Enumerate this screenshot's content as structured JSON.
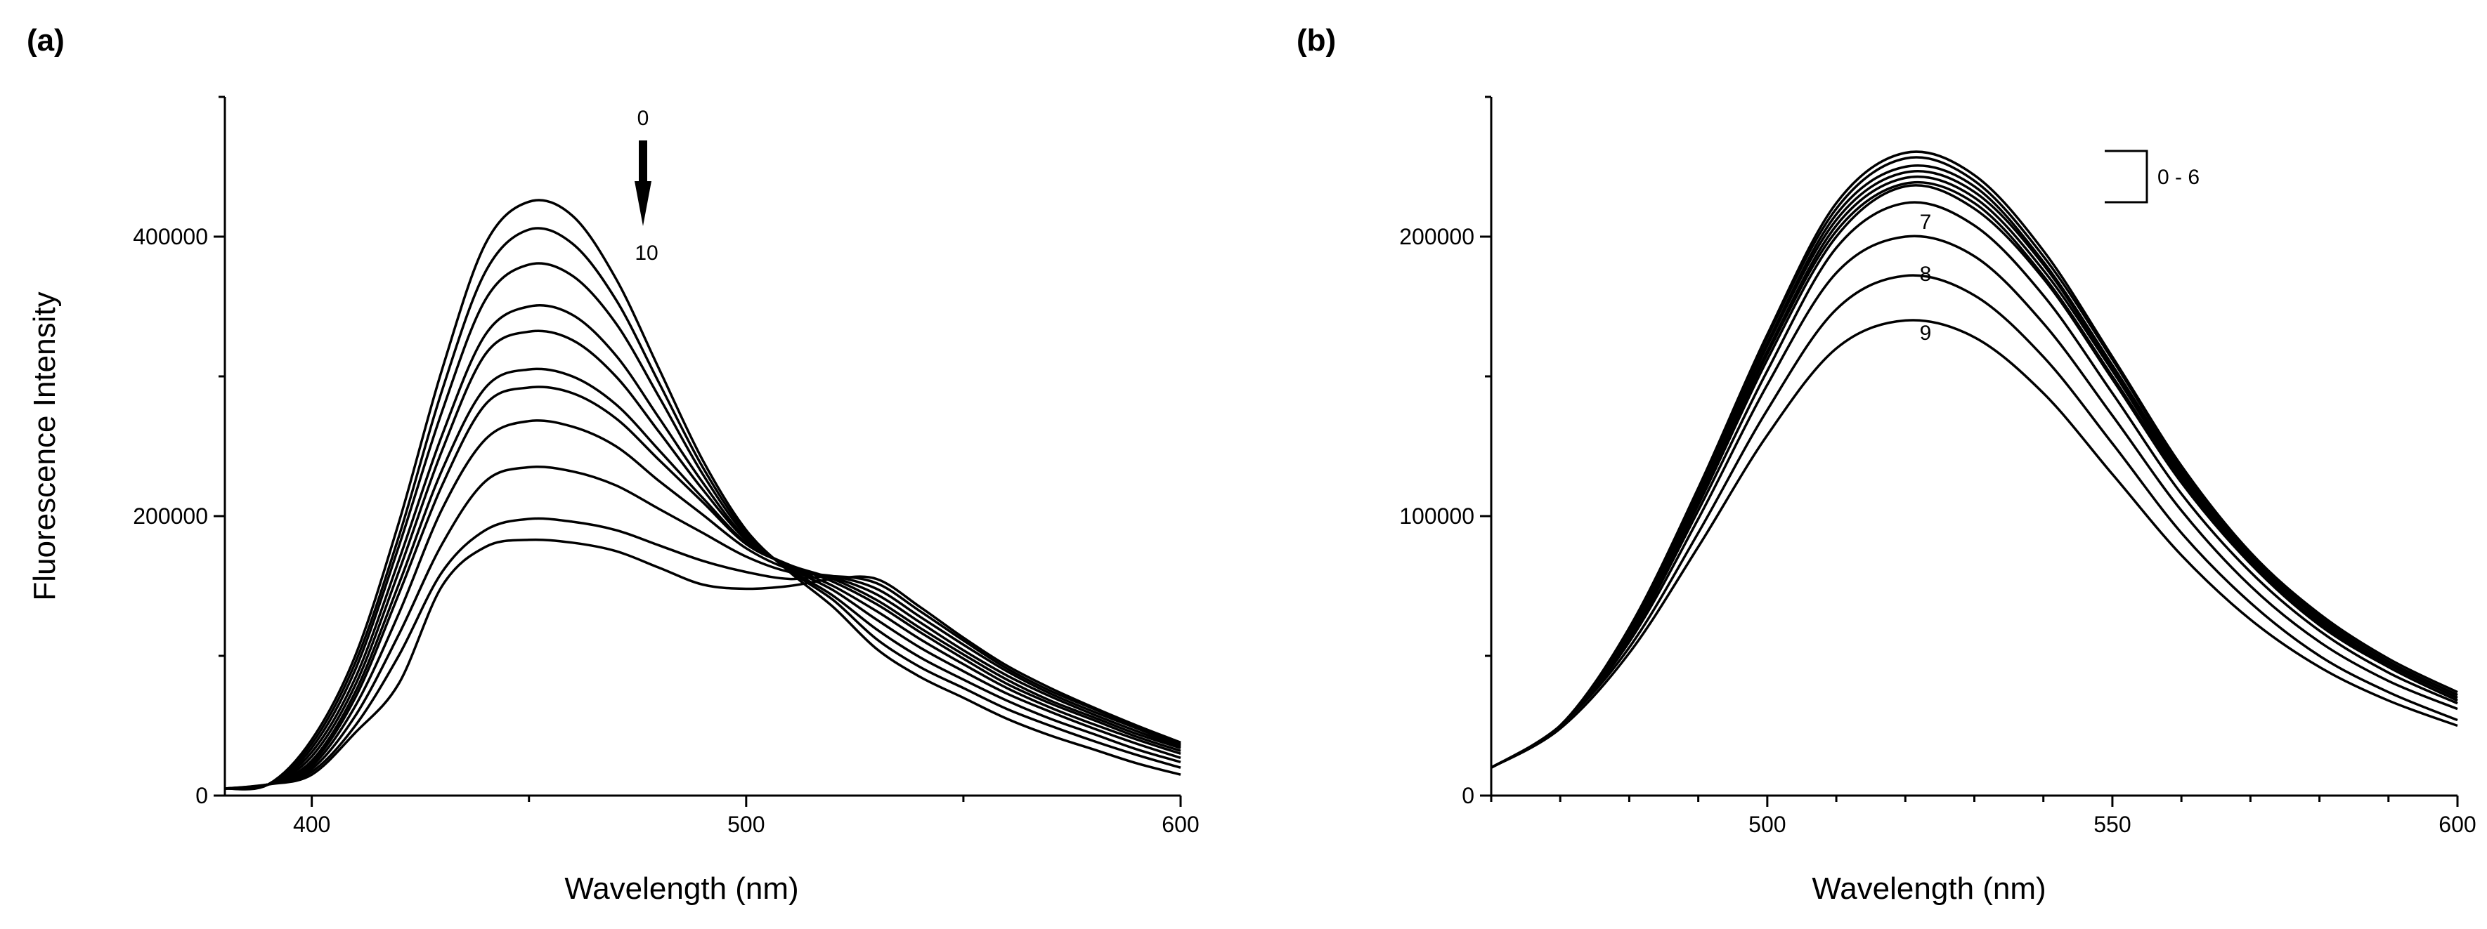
{
  "chart_data": [
    {
      "panel": "(a)",
      "type": "line",
      "xlabel": "Wavelength (nm)",
      "ylabel": "Fluorescence Intensity",
      "xlim": [
        380,
        600
      ],
      "ylim": [
        0,
        500000
      ],
      "x_ticks": [
        400,
        500,
        600
      ],
      "y_ticks": [
        0,
        200000,
        400000
      ],
      "x_tick_labels": [
        "400",
        "500",
        "600"
      ],
      "y_tick_labels": [
        "0",
        "200000",
        "400000"
      ],
      "annotations": {
        "top_label": "0",
        "bottom_label": "10"
      },
      "x": [
        380,
        390,
        400,
        410,
        420,
        430,
        440,
        450,
        460,
        470,
        480,
        490,
        500,
        510,
        520,
        530,
        540,
        550,
        560,
        570,
        580,
        590,
        600
      ],
      "series": [
        {
          "name": "0",
          "values": [
            5000,
            8000,
            40000,
            100000,
            195000,
            305000,
            395000,
            425000,
            415000,
            370000,
            305000,
            240000,
            190000,
            160000,
            135000,
            105000,
            85000,
            70000,
            55000,
            43000,
            33000,
            23000,
            15000
          ]
        },
        {
          "name": "1",
          "values": [
            5000,
            8000,
            37000,
            95000,
            185000,
            290000,
            375000,
            405000,
            395000,
            355000,
            295000,
            235000,
            188000,
            161000,
            140000,
            112000,
            92000,
            77000,
            62000,
            50000,
            39000,
            29000,
            20000
          ]
        },
        {
          "name": "2",
          "values": [
            5000,
            8000,
            34000,
            90000,
            178000,
            275000,
            355000,
            380000,
            372000,
            338000,
            285000,
            230000,
            186000,
            162000,
            143000,
            119000,
            99000,
            83000,
            68000,
            55000,
            44000,
            33000,
            24000
          ]
        },
        {
          "name": "3",
          "values": [
            5000,
            8000,
            31000,
            84000,
            168000,
            258000,
            330000,
            350000,
            344000,
            315000,
            270000,
            224000,
            184000,
            163000,
            147000,
            126000,
            106000,
            89000,
            73000,
            60000,
            48000,
            37000,
            27000
          ]
        },
        {
          "name": "4",
          "values": [
            5000,
            8000,
            28000,
            79000,
            160000,
            247000,
            316000,
            332000,
            326000,
            300000,
            260000,
            219000,
            183000,
            164000,
            150000,
            132000,
            112000,
            94000,
            77000,
            63000,
            51000,
            40000,
            30000
          ]
        },
        {
          "name": "5",
          "values": [
            5000,
            8000,
            25000,
            74000,
            151000,
            233000,
            292000,
            305000,
            300000,
            280000,
            247000,
            213000,
            181000,
            165000,
            153000,
            137000,
            117000,
            98000,
            80000,
            66000,
            54000,
            42000,
            32000
          ]
        },
        {
          "name": "6",
          "values": [
            5000,
            8000,
            23000,
            70000,
            144000,
            222000,
            280000,
            292000,
            288000,
            270000,
            240000,
            210000,
            180000,
            165000,
            155000,
            140000,
            120000,
            101000,
            83000,
            68000,
            56000,
            44000,
            34000
          ]
        },
        {
          "name": "7",
          "values": [
            5000,
            8000,
            21000,
            64000,
            130000,
            205000,
            255000,
            268000,
            264000,
            250000,
            225000,
            201000,
            177000,
            162000,
            156000,
            144000,
            124000,
            104000,
            86000,
            71000,
            58000,
            46000,
            35000
          ]
        },
        {
          "name": "8",
          "values": [
            5000,
            8000,
            19000,
            57000,
            115000,
            180000,
            225000,
            235000,
            232000,
            222000,
            205000,
            188000,
            171000,
            160000,
            157000,
            148000,
            128000,
            108000,
            89000,
            73000,
            60000,
            48000,
            36000
          ]
        },
        {
          "name": "9",
          "values": [
            5000,
            8000,
            17000,
            50000,
            100000,
            160000,
            190000,
            198000,
            196000,
            190000,
            179000,
            168000,
            160000,
            155000,
            157000,
            152000,
            132000,
            111000,
            91000,
            75000,
            62000,
            49000,
            37000
          ]
        },
        {
          "name": "10",
          "values": [
            5000,
            8000,
            15000,
            45000,
            80000,
            150000,
            178000,
            183000,
            181000,
            175000,
            163000,
            151000,
            148000,
            150000,
            155000,
            155000,
            135000,
            113000,
            93000,
            77000,
            63000,
            50000,
            38000
          ]
        }
      ]
    },
    {
      "panel": "(b)",
      "type": "line",
      "xlabel": "Wavelength (nm)",
      "ylabel": "",
      "xlim": [
        460,
        600
      ],
      "ylim": [
        0,
        250000
      ],
      "x_ticks": [
        500,
        550,
        600
      ],
      "y_ticks": [
        0,
        100000,
        200000
      ],
      "x_tick_labels": [
        "500",
        "550",
        "600"
      ],
      "y_tick_labels": [
        "0",
        "100000",
        "200000"
      ],
      "annotations": {
        "bracket_label": "0 - 6",
        "curve_labels": [
          "7",
          "8",
          "9"
        ]
      },
      "x": [
        460,
        470,
        480,
        490,
        500,
        510,
        520,
        530,
        540,
        550,
        560,
        570,
        580,
        590,
        600
      ],
      "series": [
        {
          "name": "0",
          "values": [
            10000,
            25000,
            60000,
            110000,
            165000,
            212000,
            230000,
            222000,
            195000,
            157000,
            118000,
            87000,
            65000,
            49000,
            37000
          ]
        },
        {
          "name": "1",
          "values": [
            10000,
            25000,
            59000,
            109000,
            164000,
            210000,
            228000,
            220000,
            193000,
            156000,
            117000,
            86000,
            64000,
            48000,
            36000
          ]
        },
        {
          "name": "2",
          "values": [
            10000,
            25000,
            59000,
            108000,
            162000,
            208000,
            225000,
            218000,
            191000,
            154000,
            116000,
            86000,
            64000,
            48000,
            36000
          ]
        },
        {
          "name": "3",
          "values": [
            10000,
            25000,
            58000,
            107000,
            161000,
            206000,
            223000,
            216000,
            190000,
            153000,
            115000,
            85000,
            63000,
            47000,
            35000
          ]
        },
        {
          "name": "4",
          "values": [
            10000,
            25000,
            58000,
            106000,
            159000,
            204000,
            221000,
            214000,
            188000,
            152000,
            114000,
            84000,
            62000,
            47000,
            35000
          ]
        },
        {
          "name": "5",
          "values": [
            10000,
            25000,
            57000,
            105000,
            158000,
            202000,
            219000,
            212000,
            186000,
            150000,
            113000,
            83000,
            62000,
            46000,
            34000
          ]
        },
        {
          "name": "6",
          "values": [
            10000,
            25000,
            57000,
            104000,
            156000,
            200000,
            218000,
            210000,
            185000,
            149000,
            112000,
            83000,
            61000,
            46000,
            34000
          ]
        },
        {
          "name": "7",
          "values": [
            10000,
            25000,
            56000,
            102000,
            152000,
            196000,
            212000,
            204000,
            179000,
            144000,
            108000,
            80000,
            59000,
            44000,
            33000
          ]
        },
        {
          "name": "8",
          "values": [
            10000,
            25000,
            55000,
            99000,
            147000,
            187000,
            200000,
            193000,
            169000,
            136000,
            102000,
            75000,
            55000,
            41000,
            31000
          ]
        },
        {
          "name": "9",
          "values": [
            10000,
            25000,
            53000,
            94000,
            138000,
            174000,
            186000,
            179000,
            157000,
            126000,
            94000,
            69000,
            50000,
            37000,
            27000
          ]
        },
        {
          "name": "10",
          "values": [
            10000,
            24000,
            51000,
            89000,
            129000,
            160000,
            170000,
            164000,
            144000,
            115000,
            86000,
            63000,
            46000,
            34000,
            25000
          ]
        }
      ]
    }
  ]
}
